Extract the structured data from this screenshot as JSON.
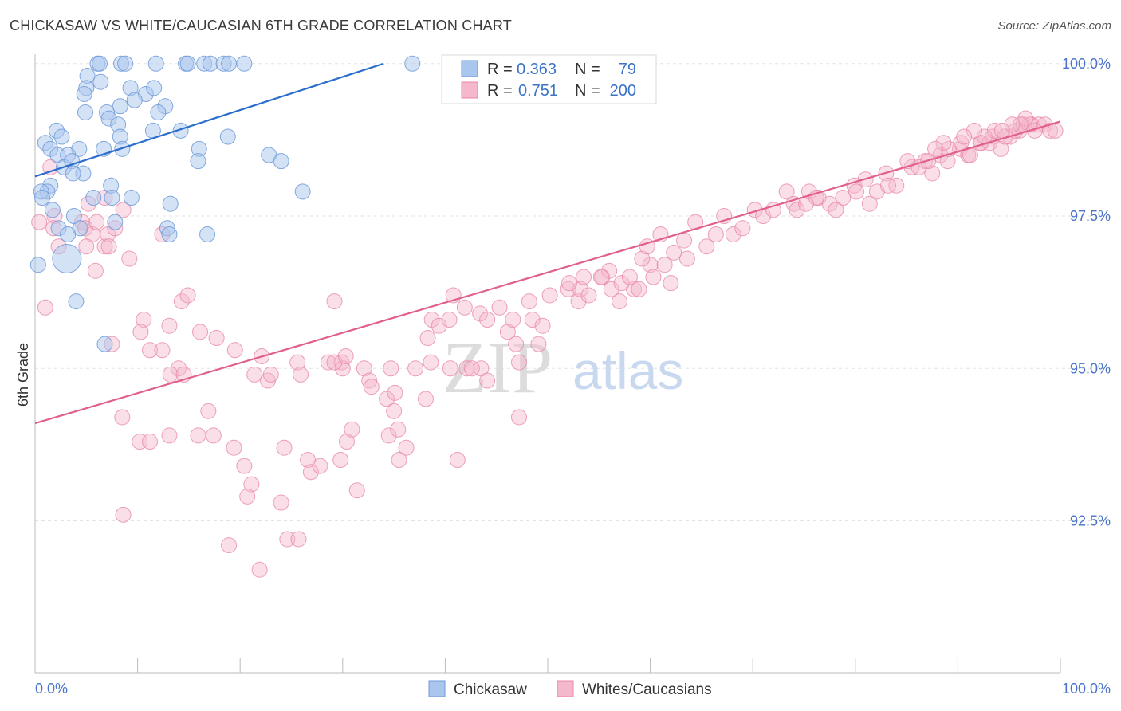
{
  "title": "CHICKASAW VS WHITE/CAUCASIAN 6TH GRADE CORRELATION CHART",
  "source": "Source: ZipAtlas.com",
  "watermark": {
    "zip": "ZIP",
    "atlas": "atlas"
  },
  "colors": {
    "blue_fill": "#a9c6ee",
    "blue_stroke": "#6f9ad8",
    "blue_line": "#2a6dcc",
    "pink_fill": "#f5b7cb",
    "pink_stroke": "#e88aa8",
    "pink_line": "#e0608a",
    "axis_label": "#4a74c9",
    "grid": "#e0e0e0"
  },
  "legend": {
    "rows": [
      {
        "r_label": "R =",
        "r_value": "0.363",
        "n_label": "N =",
        "n_value": "79",
        "series": "Chickasaw"
      },
      {
        "r_label": "R =",
        "r_value": "0.751",
        "n_label": "N =",
        "n_value": "200",
        "series": "Whites/Caucasians"
      }
    ]
  },
  "bottom_legend": [
    "Chickasaw",
    "Whites/Caucasians"
  ],
  "chart_data": {
    "type": "scatter",
    "title": "CHICKASAW VS WHITE/CAUCASIAN 6TH GRADE CORRELATION CHART",
    "xlabel": "",
    "ylabel": "6th Grade",
    "xlim": [
      0,
      100
    ],
    "ylim": [
      90.0,
      100.2
    ],
    "x_tick_labels": [
      "0.0%",
      "100.0%"
    ],
    "y_ticks": [
      92.5,
      95.0,
      97.5,
      100.0
    ],
    "y_tick_labels": [
      "92.5%",
      "95.0%",
      "97.5%",
      "100.0%"
    ],
    "grid": true,
    "legend_position": "top-center",
    "series": [
      {
        "name": "Chickasaw",
        "color": "#a9c6ee",
        "trend": {
          "x": [
            0,
            34
          ],
          "y": [
            98.15,
            100.0
          ]
        },
        "points": [
          [
            6.1,
            100
          ],
          [
            6.3,
            100
          ],
          [
            8.4,
            100
          ],
          [
            8.8,
            100
          ],
          [
            11.8,
            100
          ],
          [
            14.7,
            100
          ],
          [
            14.9,
            100
          ],
          [
            16.5,
            100
          ],
          [
            17.1,
            100
          ],
          [
            18.4,
            100
          ],
          [
            18.9,
            100
          ],
          [
            20.4,
            100
          ],
          [
            36.8,
            100
          ],
          [
            5.1,
            99.8
          ],
          [
            6.4,
            99.7
          ],
          [
            5.0,
            99.6
          ],
          [
            4.8,
            99.5
          ],
          [
            9.3,
            99.6
          ],
          [
            10.8,
            99.5
          ],
          [
            12.7,
            99.3
          ],
          [
            9.7,
            99.4
          ],
          [
            8.3,
            99.3
          ],
          [
            12.0,
            99.2
          ],
          [
            11.6,
            99.6
          ],
          [
            4.9,
            99.2
          ],
          [
            7.0,
            99.2
          ],
          [
            7.2,
            99.1
          ],
          [
            8.1,
            99.0
          ],
          [
            2.1,
            98.9
          ],
          [
            1.0,
            98.7
          ],
          [
            2.6,
            98.8
          ],
          [
            11.5,
            98.9
          ],
          [
            14.2,
            98.9
          ],
          [
            18.8,
            98.8
          ],
          [
            1.5,
            98.6
          ],
          [
            2.2,
            98.5
          ],
          [
            4.3,
            98.6
          ],
          [
            3.2,
            98.5
          ],
          [
            6.7,
            98.6
          ],
          [
            8.3,
            98.8
          ],
          [
            8.5,
            98.6
          ],
          [
            16.0,
            98.6
          ],
          [
            22.8,
            98.5
          ],
          [
            24.0,
            98.4
          ],
          [
            15.9,
            98.4
          ],
          [
            2.8,
            98.3
          ],
          [
            3.6,
            98.4
          ],
          [
            4.7,
            98.2
          ],
          [
            3.7,
            98.2
          ],
          [
            1.5,
            98.0
          ],
          [
            1.2,
            97.9
          ],
          [
            0.6,
            97.9
          ],
          [
            0.7,
            97.8
          ],
          [
            7.4,
            98.0
          ],
          [
            7.5,
            97.8
          ],
          [
            5.7,
            97.8
          ],
          [
            9.4,
            97.8
          ],
          [
            13.2,
            97.7
          ],
          [
            26.1,
            97.9
          ],
          [
            1.7,
            97.6
          ],
          [
            3.8,
            97.5
          ],
          [
            4.4,
            97.3
          ],
          [
            2.3,
            97.3
          ],
          [
            3.2,
            97.2
          ],
          [
            12.9,
            97.3
          ],
          [
            13.1,
            97.2
          ],
          [
            16.8,
            97.2
          ],
          [
            7.8,
            97.4
          ],
          [
            3.1,
            96.8
          ],
          [
            0.3,
            96.7
          ],
          [
            4.0,
            96.1
          ],
          [
            6.8,
            95.4
          ]
        ]
      },
      {
        "name": "Whites/Caucasians",
        "color": "#f5b7cb",
        "trend": {
          "x": [
            0,
            100
          ],
          "y": [
            94.1,
            99.05
          ]
        },
        "points": [
          [
            1.5,
            98.3
          ],
          [
            0.4,
            97.4
          ],
          [
            5.2,
            97.7
          ],
          [
            1.9,
            97.5
          ],
          [
            1.8,
            97.3
          ],
          [
            2.3,
            97.0
          ],
          [
            1.0,
            96.0
          ],
          [
            4.6,
            97.4
          ],
          [
            4.9,
            97.3
          ],
          [
            5.6,
            97.2
          ],
          [
            5.0,
            97.0
          ],
          [
            6.8,
            97.0
          ],
          [
            7.1,
            97.2
          ],
          [
            8.6,
            97.6
          ],
          [
            7.8,
            97.3
          ],
          [
            9.2,
            96.8
          ],
          [
            12.4,
            97.2
          ],
          [
            6.8,
            97.8
          ],
          [
            6.0,
            97.4
          ],
          [
            7.2,
            97.0
          ],
          [
            5.9,
            96.6
          ],
          [
            14.3,
            96.1
          ],
          [
            14.9,
            96.2
          ],
          [
            10.6,
            95.8
          ],
          [
            13.1,
            95.7
          ],
          [
            10.3,
            95.6
          ],
          [
            11.2,
            95.3
          ],
          [
            12.4,
            95.3
          ],
          [
            16.1,
            95.6
          ],
          [
            17.7,
            95.5
          ],
          [
            7.5,
            95.4
          ],
          [
            22.1,
            95.2
          ],
          [
            22.7,
            94.8
          ],
          [
            23.0,
            94.9
          ],
          [
            19.5,
            95.3
          ],
          [
            25.6,
            95.1
          ],
          [
            28.6,
            95.1
          ],
          [
            29.9,
            95.1
          ],
          [
            14.0,
            95.0
          ],
          [
            13.2,
            94.9
          ],
          [
            14.5,
            94.9
          ],
          [
            21.4,
            94.9
          ],
          [
            25.9,
            94.9
          ],
          [
            30.0,
            95.0
          ],
          [
            29.2,
            95.1
          ],
          [
            30.3,
            95.2
          ],
          [
            32.1,
            95.0
          ],
          [
            32.6,
            94.8
          ],
          [
            34.7,
            95.0
          ],
          [
            32.8,
            94.7
          ],
          [
            34.3,
            94.5
          ],
          [
            35.1,
            94.6
          ],
          [
            35.0,
            94.3
          ],
          [
            38.1,
            94.5
          ],
          [
            42.1,
            95.0
          ],
          [
            43.5,
            95.0
          ],
          [
            8.5,
            94.2
          ],
          [
            10.2,
            93.8
          ],
          [
            11.2,
            93.8
          ],
          [
            13.1,
            93.9
          ],
          [
            15.9,
            93.9
          ],
          [
            16.9,
            94.3
          ],
          [
            17.4,
            93.9
          ],
          [
            19.4,
            93.7
          ],
          [
            20.4,
            93.4
          ],
          [
            21.1,
            93.1
          ],
          [
            20.7,
            92.9
          ],
          [
            24.3,
            93.7
          ],
          [
            26.6,
            93.5
          ],
          [
            26.9,
            93.3
          ],
          [
            27.8,
            93.4
          ],
          [
            29.8,
            93.5
          ],
          [
            30.4,
            93.8
          ],
          [
            30.9,
            94.0
          ],
          [
            34.5,
            93.9
          ],
          [
            35.4,
            94.0
          ],
          [
            36.2,
            93.7
          ],
          [
            35.5,
            93.5
          ],
          [
            8.6,
            92.6
          ],
          [
            18.9,
            92.1
          ],
          [
            21.9,
            91.7
          ],
          [
            24.0,
            92.8
          ],
          [
            24.6,
            92.2
          ],
          [
            25.7,
            92.2
          ],
          [
            31.4,
            93.0
          ],
          [
            41.2,
            93.5
          ],
          [
            40.5,
            95.0
          ],
          [
            42.6,
            95.0
          ],
          [
            44.1,
            94.8
          ],
          [
            47.2,
            94.2
          ],
          [
            29.2,
            96.1
          ],
          [
            37.1,
            95.0
          ],
          [
            38.6,
            95.1
          ],
          [
            38.3,
            95.5
          ],
          [
            38.7,
            95.8
          ],
          [
            39.4,
            95.7
          ],
          [
            40.4,
            95.8
          ],
          [
            40.8,
            96.2
          ],
          [
            41.9,
            96.0
          ],
          [
            43.4,
            95.9
          ],
          [
            44.1,
            95.8
          ],
          [
            45.3,
            96.0
          ],
          [
            46.1,
            95.6
          ],
          [
            46.6,
            95.8
          ],
          [
            46.9,
            95.4
          ],
          [
            47.2,
            95.1
          ],
          [
            48.5,
            95.8
          ],
          [
            49.1,
            95.4
          ],
          [
            49.5,
            95.7
          ],
          [
            48.2,
            96.1
          ],
          [
            50.2,
            96.2
          ],
          [
            52.0,
            96.3
          ],
          [
            53.0,
            96.1
          ],
          [
            53.2,
            96.3
          ],
          [
            54.0,
            96.2
          ],
          [
            55.3,
            96.5
          ],
          [
            56.0,
            96.6
          ],
          [
            57.0,
            96.1
          ],
          [
            58.4,
            96.3
          ],
          [
            58.9,
            96.3
          ],
          [
            60.0,
            96.7
          ],
          [
            60.3,
            96.5
          ],
          [
            61.4,
            96.7
          ],
          [
            62.0,
            96.4
          ],
          [
            63.6,
            96.8
          ],
          [
            52.1,
            96.4
          ],
          [
            53.5,
            96.5
          ],
          [
            55.2,
            96.5
          ],
          [
            56.2,
            96.3
          ],
          [
            57.2,
            96.4
          ],
          [
            58.0,
            96.5
          ],
          [
            59.2,
            96.8
          ],
          [
            59.7,
            97.0
          ],
          [
            61.0,
            97.2
          ],
          [
            62.3,
            96.9
          ],
          [
            63.3,
            97.1
          ],
          [
            64.4,
            97.4
          ],
          [
            65.5,
            97.0
          ],
          [
            66.4,
            97.2
          ],
          [
            67.2,
            97.5
          ],
          [
            68.1,
            97.2
          ],
          [
            69.0,
            97.3
          ],
          [
            70.2,
            97.6
          ],
          [
            71.0,
            97.5
          ],
          [
            72.0,
            97.6
          ],
          [
            74.0,
            97.7
          ],
          [
            75.5,
            97.9
          ],
          [
            76.4,
            97.8
          ],
          [
            77.5,
            97.7
          ],
          [
            78.8,
            97.8
          ],
          [
            79.9,
            98.0
          ],
          [
            81.0,
            98.1
          ],
          [
            82.1,
            97.9
          ],
          [
            83.0,
            98.2
          ],
          [
            84.0,
            98.0
          ],
          [
            85.5,
            98.3
          ],
          [
            86.8,
            98.4
          ],
          [
            87.5,
            98.2
          ],
          [
            88.3,
            98.5
          ],
          [
            89.0,
            98.4
          ],
          [
            90.2,
            98.6
          ],
          [
            91.0,
            98.5
          ],
          [
            92.3,
            98.7
          ],
          [
            73.3,
            97.9
          ],
          [
            74.3,
            97.6
          ],
          [
            75.2,
            97.7
          ],
          [
            76.2,
            97.8
          ],
          [
            78.1,
            97.6
          ],
          [
            80.1,
            97.9
          ],
          [
            81.4,
            97.7
          ],
          [
            83.2,
            98.0
          ],
          [
            85.1,
            98.4
          ],
          [
            86.2,
            98.3
          ],
          [
            87.1,
            98.4
          ],
          [
            89.1,
            98.6
          ],
          [
            90.3,
            98.7
          ],
          [
            91.2,
            98.5
          ],
          [
            92.2,
            98.7
          ],
          [
            93.4,
            98.8
          ],
          [
            94.2,
            98.6
          ],
          [
            95.1,
            98.8
          ],
          [
            96.0,
            98.9
          ],
          [
            93.1,
            98.7
          ],
          [
            93.6,
            98.9
          ],
          [
            94.6,
            98.8
          ],
          [
            95.6,
            98.9
          ],
          [
            96.4,
            99.0
          ],
          [
            97.2,
            99.0
          ],
          [
            97.9,
            99.0
          ],
          [
            98.5,
            99.0
          ],
          [
            99.0,
            98.9
          ],
          [
            99.5,
            98.9
          ],
          [
            97.5,
            98.9
          ],
          [
            97.0,
            99.0
          ],
          [
            96.6,
            99.1
          ],
          [
            96.1,
            99.0
          ],
          [
            95.3,
            99.0
          ],
          [
            94.3,
            98.9
          ],
          [
            92.6,
            98.8
          ],
          [
            91.6,
            98.9
          ],
          [
            90.6,
            98.8
          ],
          [
            88.6,
            98.7
          ],
          [
            87.8,
            98.6
          ]
        ]
      }
    ]
  }
}
